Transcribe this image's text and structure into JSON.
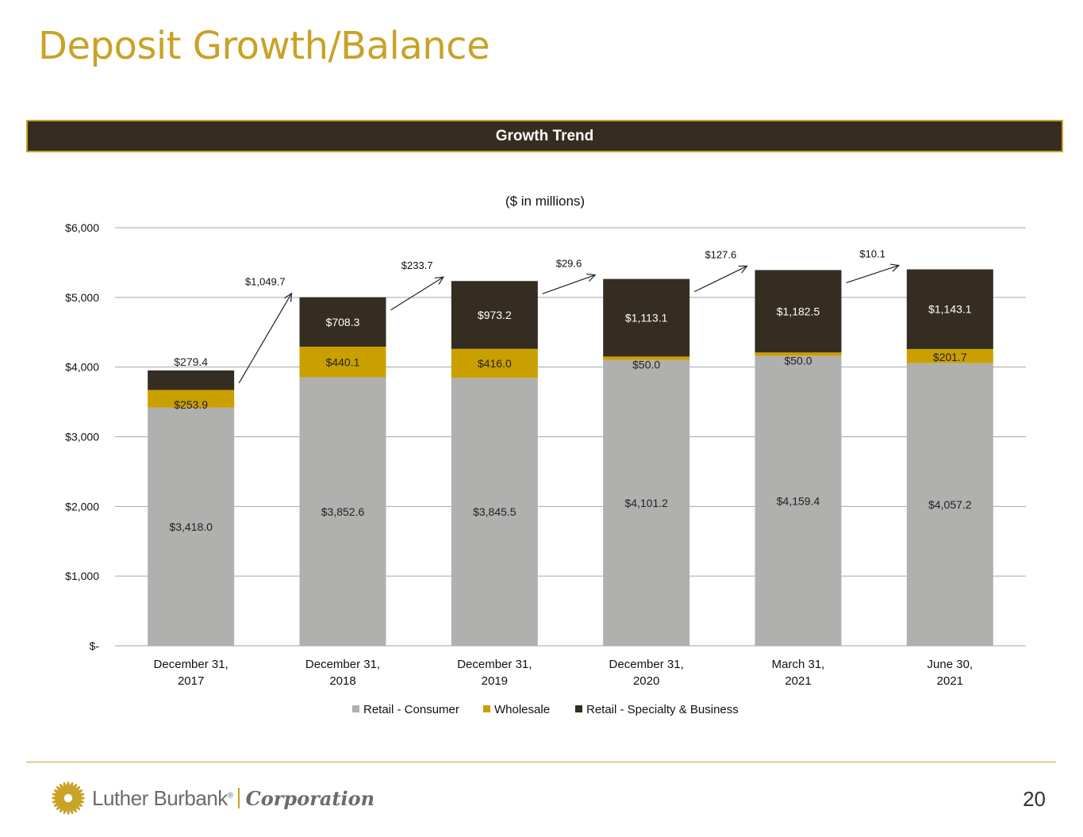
{
  "page": {
    "title": "Deposit Growth/Balance",
    "section_header": "Growth Trend",
    "page_number": "20"
  },
  "logo": {
    "name": "Luther Burbank",
    "registered": "®",
    "corporation": "Corporation"
  },
  "colors": {
    "accent": "#C9A227",
    "dark": "#352D21",
    "consumer": "#B0B0AF",
    "wholesale": "#C9A000",
    "specialty": "#352D21"
  },
  "chart_data": {
    "type": "bar",
    "stacked": true,
    "subtitle": "($ in millions)",
    "ylim": [
      0,
      6000
    ],
    "y_ticks": [
      0,
      1000,
      2000,
      3000,
      4000,
      5000,
      6000
    ],
    "y_tick_labels": [
      "$-",
      "$1,000",
      "$2,000",
      "$3,000",
      "$4,000",
      "$5,000",
      "$6,000"
    ],
    "grid": true,
    "legend_position": "bottom",
    "categories": [
      [
        "December 31,",
        "2017"
      ],
      [
        "December 31,",
        "2018"
      ],
      [
        "December 31,",
        "2019"
      ],
      [
        "December 31,",
        "2020"
      ],
      [
        "March 31,",
        "2021"
      ],
      [
        "June 30,",
        "2021"
      ]
    ],
    "series": [
      {
        "name": "Retail - Consumer",
        "values": [
          3418.0,
          3852.6,
          3845.5,
          4101.2,
          4159.4,
          4057.2
        ],
        "labels": [
          "$3,418.0",
          "$3,852.6",
          "$3,845.5",
          "$4,101.2",
          "$4,159.4",
          "$4,057.2"
        ]
      },
      {
        "name": "Wholesale",
        "values": [
          253.9,
          440.1,
          416.0,
          50.0,
          50.0,
          201.7
        ],
        "labels": [
          "$253.9",
          "$440.1",
          "$416.0",
          "$50.0",
          "$50.0",
          "$201.7"
        ]
      },
      {
        "name": "Retail - Specialty & Business",
        "values": [
          279.4,
          708.3,
          973.2,
          1113.1,
          1182.5,
          1143.1
        ],
        "labels": [
          "$279.4",
          "$708.3",
          "$973.2",
          "$1,113.1",
          "$1,182.5",
          "$1,143.1"
        ]
      }
    ],
    "growth_annotations": [
      "$1,049.7",
      "$233.7",
      "$29.6",
      "$127.6",
      "$10.1"
    ]
  }
}
